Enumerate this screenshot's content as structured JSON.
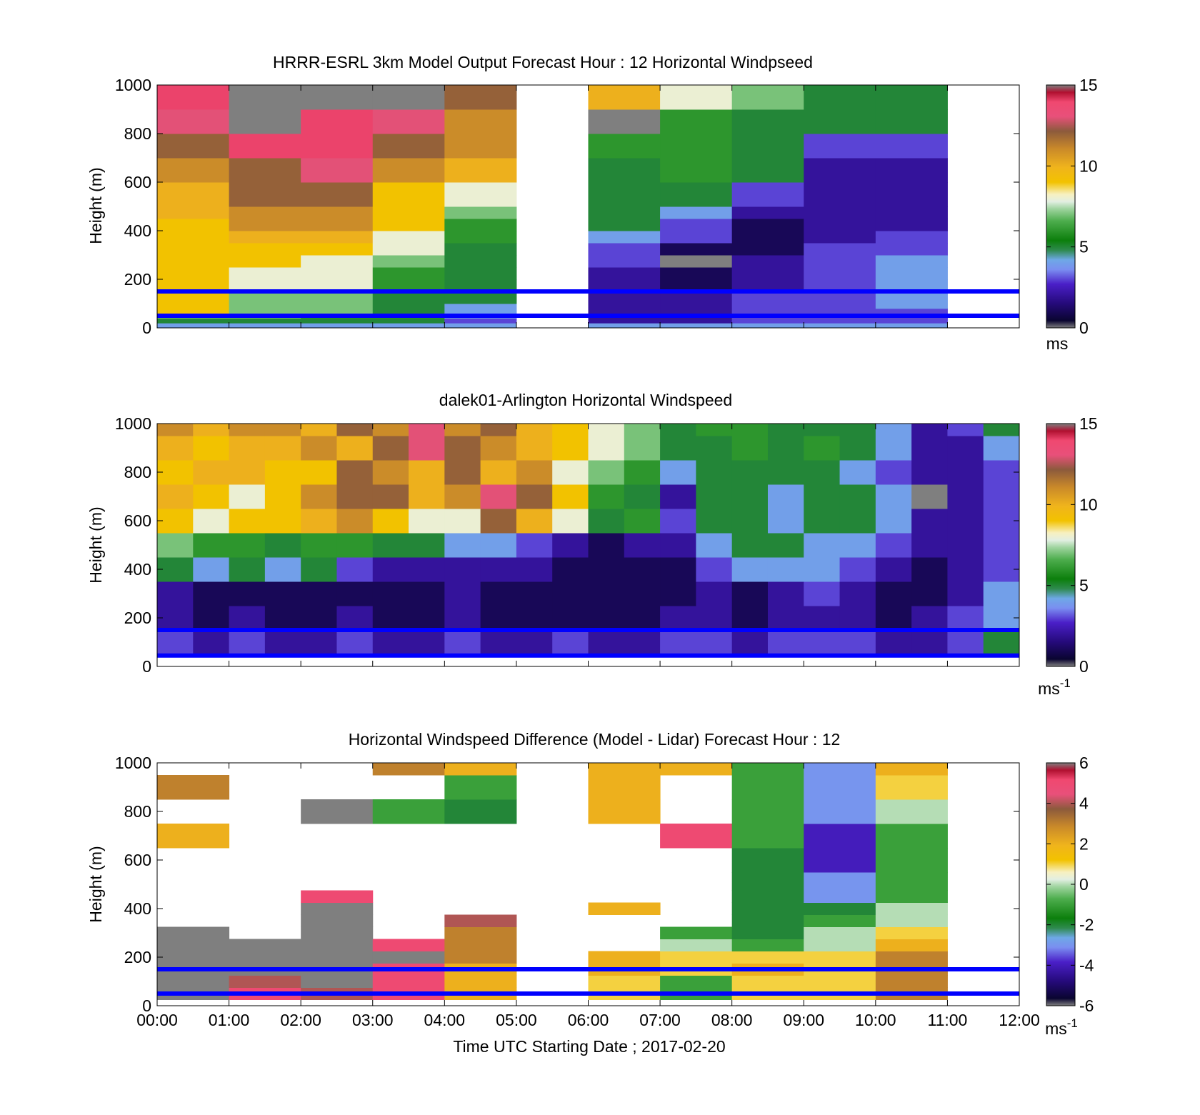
{
  "figure": {
    "xlabel": "Time UTC  Starting Date ; 2017-02-20",
    "x_tick_labels": [
      "00:00",
      "01:00",
      "02:00",
      "03:00",
      "04:00",
      "05:00",
      "06:00",
      "07:00",
      "08:00",
      "09:00",
      "10:00",
      "11:00",
      "12:00"
    ],
    "reference_line_color": "#0000ff"
  },
  "chart_data": [
    {
      "type": "heatmap",
      "title": "HRRR-ESRL 3km Model Output   Forecast Hour : 12 Horizontal Windpseed",
      "xlabel": "",
      "ylabel": "Height (m)",
      "xlim": [
        0,
        12
      ],
      "ylim": [
        0,
        1000
      ],
      "y_ticks": [
        0,
        200,
        400,
        600,
        800,
        1000
      ],
      "colorbar": {
        "min": 0,
        "max": 15,
        "ticks": [
          0,
          5,
          10,
          15
        ],
        "unit": "ms"
      },
      "reference_lines_height_m": [
        50,
        150
      ],
      "x_hours": [
        0,
        1,
        2,
        3,
        4,
        6,
        7,
        8,
        9,
        10
      ],
      "y_heights_m": [
        0,
        20,
        40,
        60,
        80,
        100,
        150,
        200,
        250,
        300,
        350,
        400,
        450,
        500,
        600,
        700,
        800,
        900,
        1000
      ],
      "values": [
        [
          4,
          4,
          4,
          4,
          4,
          4,
          4,
          4,
          4,
          4
        ],
        [
          5,
          5,
          5,
          5,
          3,
          2,
          2,
          3,
          3,
          3
        ],
        [
          7,
          7,
          6,
          6,
          4,
          2,
          2,
          3,
          3,
          3
        ],
        [
          9,
          7,
          7,
          5,
          4,
          2,
          2,
          3,
          3,
          3
        ],
        [
          9,
          7,
          7,
          5,
          4,
          2,
          2,
          3,
          3,
          4
        ],
        [
          9,
          7,
          7,
          5,
          5,
          2,
          2,
          3,
          3,
          4
        ],
        [
          9,
          8,
          8,
          6,
          5,
          2,
          1,
          2,
          3,
          4
        ],
        [
          9,
          8,
          8,
          6,
          5,
          2,
          1,
          2,
          3,
          4
        ],
        [
          9,
          9,
          8,
          7,
          5,
          3,
          0,
          2,
          3,
          4
        ],
        [
          9,
          9,
          9,
          8,
          5,
          3,
          1,
          1,
          3,
          3
        ],
        [
          9,
          10,
          10,
          8,
          6,
          4,
          3,
          1,
          2,
          3
        ],
        [
          9,
          11,
          11,
          9,
          6,
          5,
          3,
          1,
          2,
          2
        ],
        [
          10,
          11,
          11,
          9,
          7,
          5,
          4,
          2,
          2,
          2
        ],
        [
          10,
          12,
          12,
          9,
          8,
          5,
          5,
          3,
          2,
          2
        ],
        [
          11,
          12,
          13,
          11,
          10,
          5,
          6,
          5,
          2,
          2
        ],
        [
          12,
          14,
          14,
          12,
          11,
          6,
          6,
          5,
          3,
          3
        ],
        [
          13,
          15,
          14,
          13,
          11,
          0,
          6,
          5,
          5,
          5
        ],
        [
          14,
          0,
          15,
          15,
          12,
          10,
          8,
          7,
          5,
          5
        ],
        [
          14,
          0,
          15,
          15,
          12,
          10,
          8,
          7,
          5,
          5
        ]
      ]
    },
    {
      "type": "heatmap",
      "title": "dalek01-Arlington  Horizontal Windspeed",
      "xlabel": "",
      "ylabel": "Height (m)",
      "xlim": [
        0,
        12
      ],
      "ylim": [
        0,
        1000
      ],
      "y_ticks": [
        0,
        200,
        400,
        600,
        800,
        1000
      ],
      "colorbar": {
        "min": 0,
        "max": 15,
        "ticks": [
          0,
          5,
          10,
          15
        ],
        "unit": "ms",
        "unit_exponent": "-1"
      },
      "reference_lines_height_m": [
        45,
        150
      ],
      "x_hours": [
        0,
        0.5,
        1,
        1.5,
        2,
        2.5,
        3,
        3.5,
        4,
        4.5,
        5,
        5.5,
        6,
        6.5,
        7,
        7.5,
        8,
        8.5,
        9,
        9.5,
        10,
        10.5,
        11,
        11.5
      ],
      "y_heights_m": [
        50,
        150,
        250,
        350,
        450,
        550,
        650,
        750,
        850,
        950
      ],
      "values": [
        [
          3,
          2,
          3,
          2,
          2,
          3,
          2,
          2,
          3,
          2,
          2,
          3,
          2,
          2,
          3,
          3,
          2,
          3,
          3,
          3,
          2,
          2,
          3,
          5
        ],
        [
          2,
          1,
          2,
          1,
          1,
          2,
          1,
          1,
          2,
          1,
          1,
          1,
          1,
          1,
          2,
          2,
          1,
          2,
          2,
          2,
          1,
          2,
          3,
          4
        ],
        [
          2,
          1,
          1,
          1,
          1,
          1,
          1,
          1,
          2,
          1,
          1,
          1,
          1,
          1,
          1,
          2,
          1,
          2,
          3,
          2,
          1,
          1,
          2,
          4
        ],
        [
          5,
          4,
          5,
          4,
          5,
          3,
          2,
          2,
          2,
          2,
          2,
          1,
          1,
          1,
          1,
          3,
          4,
          4,
          4,
          3,
          2,
          1,
          2,
          3
        ],
        [
          7,
          6,
          6,
          5,
          6,
          6,
          5,
          5,
          4,
          4,
          3,
          2,
          1,
          2,
          2,
          4,
          5,
          5,
          4,
          4,
          3,
          2,
          2,
          3
        ],
        [
          9,
          8,
          9,
          9,
          10,
          11,
          9,
          8,
          8,
          12,
          10,
          8,
          5,
          6,
          3,
          5,
          5,
          4,
          5,
          5,
          4,
          2,
          2,
          3
        ],
        [
          10,
          9,
          8,
          9,
          11,
          12,
          12,
          10,
          11,
          13,
          12,
          9,
          6,
          5,
          2,
          5,
          5,
          4,
          5,
          5,
          4,
          0,
          2,
          3
        ],
        [
          9,
          10,
          10,
          9,
          9,
          12,
          11,
          10,
          12,
          10,
          11,
          8,
          7,
          6,
          4,
          5,
          5,
          5,
          5,
          4,
          3,
          2,
          2,
          3
        ],
        [
          10,
          9,
          10,
          10,
          11,
          10,
          12,
          13,
          12,
          11,
          10,
          9,
          8,
          7,
          5,
          5,
          6,
          5,
          6,
          5,
          4,
          2,
          2,
          4
        ],
        [
          11,
          10,
          11,
          11,
          10,
          12,
          11,
          13,
          11,
          12,
          10,
          9,
          8,
          7,
          5,
          6,
          6,
          5,
          5,
          5,
          4,
          2,
          3,
          5
        ]
      ]
    },
    {
      "type": "heatmap",
      "title": "Horizontal Windspeed Difference (Model - Lidar) Forecast Hour : 12",
      "xlabel": "Time UTC  Starting Date ; 2017-02-20",
      "ylabel": "Height (m)",
      "xlim": [
        0,
        12
      ],
      "ylim": [
        0,
        1000
      ],
      "y_ticks": [
        0,
        200,
        400,
        600,
        800,
        1000
      ],
      "colorbar": {
        "min": -6,
        "max": 6,
        "ticks": [
          -6,
          -4,
          -2,
          0,
          2,
          4,
          6
        ],
        "unit": "ms",
        "unit_exponent": "-1"
      },
      "reference_lines_height_m": [
        50,
        150
      ],
      "x_hours": [
        0,
        1,
        2,
        3,
        4,
        6,
        7,
        8,
        9,
        10
      ],
      "y_heights_m": [
        25,
        75,
        125,
        175,
        225,
        275,
        325,
        375,
        425,
        475,
        550,
        650,
        750,
        850,
        950
      ],
      "values": [
        [
          7,
          5,
          4,
          5,
          2,
          1,
          -1,
          1,
          1,
          3
        ],
        [
          7,
          4,
          7,
          5,
          2,
          1,
          -1,
          1,
          1,
          3
        ],
        [
          7,
          7,
          7,
          5,
          2,
          2,
          1,
          2,
          1,
          3
        ],
        [
          7,
          7,
          7,
          7,
          3,
          2,
          1,
          1,
          1,
          3
        ],
        [
          7,
          7,
          7,
          5,
          3,
          null,
          0,
          -1,
          0,
          2
        ],
        [
          7,
          null,
          7,
          null,
          3,
          null,
          -1,
          -2,
          0,
          1
        ],
        [
          null,
          null,
          7,
          null,
          4,
          null,
          null,
          -2,
          -1,
          0
        ],
        [
          null,
          null,
          7,
          null,
          null,
          2,
          null,
          -2,
          -2,
          0
        ],
        [
          null,
          null,
          5,
          null,
          null,
          null,
          null,
          -2,
          -3,
          -1
        ],
        [
          null,
          null,
          null,
          null,
          null,
          null,
          null,
          -2,
          -3,
          -1
        ],
        [
          null,
          null,
          null,
          null,
          null,
          null,
          null,
          -2,
          -4,
          -1
        ],
        [
          2,
          null,
          null,
          null,
          null,
          null,
          5,
          -1,
          -4,
          -1
        ],
        [
          null,
          null,
          7,
          -1,
          -2,
          2,
          null,
          -1,
          -3,
          0
        ],
        [
          3,
          null,
          null,
          null,
          -1,
          2,
          null,
          -1,
          -3,
          1
        ],
        [
          null,
          null,
          null,
          3,
          2,
          2,
          2,
          -1,
          -3,
          2
        ]
      ]
    }
  ]
}
